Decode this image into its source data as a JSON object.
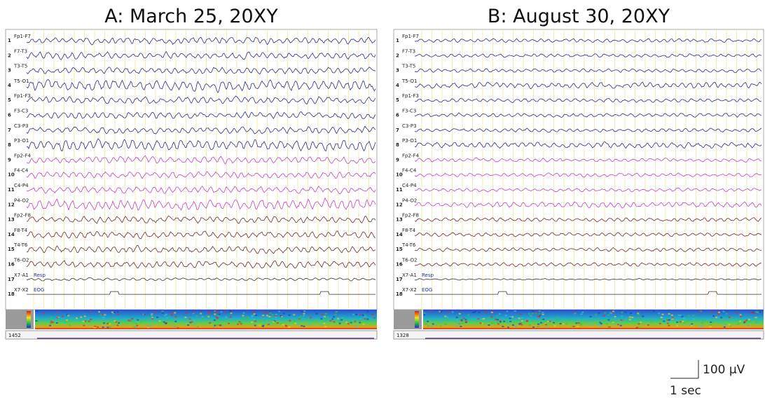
{
  "panels": [
    {
      "title": "A: March 25, 20XY",
      "time": "1452",
      "channels": [
        {
          "number": 1,
          "label": "Fp1-F7"
        },
        {
          "number": 2,
          "label": "F7-T3"
        },
        {
          "number": 3,
          "label": "T3-T5"
        },
        {
          "number": 4,
          "label": "T5-O1"
        },
        {
          "number": 5,
          "label": "Fp1-F3"
        },
        {
          "number": 6,
          "label": "F3-C3"
        },
        {
          "number": 7,
          "label": "C3-P3"
        },
        {
          "number": 8,
          "label": "P3-O1"
        },
        {
          "number": 9,
          "label": "Fp2-F4"
        },
        {
          "number": 10,
          "label": "F4-C4"
        },
        {
          "number": 11,
          "label": "C4-P4"
        },
        {
          "number": 12,
          "label": "P4-O2"
        },
        {
          "number": 13,
          "label": "Fp2-F8"
        },
        {
          "number": 14,
          "label": "F8-T4"
        },
        {
          "number": 15,
          "label": "T4-T6"
        },
        {
          "number": 16,
          "label": "T6-O2"
        },
        {
          "number": 17,
          "label": "X7-A1",
          "annotation": "Resp"
        },
        {
          "number": 18,
          "label": "X7-X2",
          "annotation": "EOG"
        }
      ]
    },
    {
      "title": "B: August 30, 20XY",
      "time": "1328",
      "channels": [
        {
          "number": 1,
          "label": "Fp1-F7"
        },
        {
          "number": 2,
          "label": "F7-T3"
        },
        {
          "number": 3,
          "label": "T3-T5"
        },
        {
          "number": 4,
          "label": "T5-O1"
        },
        {
          "number": 5,
          "label": "Fp1-F3"
        },
        {
          "number": 6,
          "label": "F3-C3"
        },
        {
          "number": 7,
          "label": "C3-P3"
        },
        {
          "number": 8,
          "label": "P3-O1"
        },
        {
          "number": 9,
          "label": "Fp2-F4"
        },
        {
          "number": 10,
          "label": "F4-C4"
        },
        {
          "number": 11,
          "label": "C4-P4"
        },
        {
          "number": 12,
          "label": "P4-O2"
        },
        {
          "number": 13,
          "label": "Fp2-F8"
        },
        {
          "number": 14,
          "label": "F8-T4"
        },
        {
          "number": 15,
          "label": "T4-T6"
        },
        {
          "number": 16,
          "label": "T6-O2"
        },
        {
          "number": 17,
          "label": "X7-A1",
          "annotation": "Resp"
        },
        {
          "number": 18,
          "label": "X7-X2",
          "annotation": "EOG"
        }
      ]
    }
  ],
  "scale": {
    "amplitude": "100 µV",
    "time": "1 sec"
  }
}
